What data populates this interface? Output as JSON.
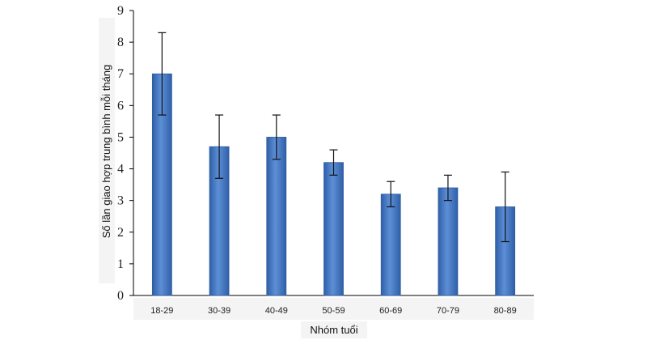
{
  "chart_data": {
    "type": "bar",
    "categories": [
      "18-29",
      "30-39",
      "40-49",
      "50-59",
      "60-69",
      "70-79",
      "80-89"
    ],
    "series": [
      {
        "values": [
          7.0,
          4.7,
          5.0,
          4.2,
          3.2,
          3.4,
          2.8
        ],
        "error_low": [
          5.7,
          3.7,
          4.3,
          3.8,
          2.8,
          3.0,
          1.7
        ],
        "error_high": [
          8.3,
          5.7,
          5.7,
          4.6,
          3.6,
          3.8,
          3.9
        ]
      }
    ],
    "xlabel": "Nhóm tuổi",
    "ylabel": "Số lần giao hợp trung bình mỗi tháng",
    "ylim": [
      0,
      9
    ],
    "yticks": [
      "0",
      "1",
      "2",
      "3",
      "4",
      "5",
      "6",
      "7",
      "8",
      "9"
    ],
    "grid": false,
    "legend": "none",
    "colors": {
      "bar": "#4a7cc4",
      "bar_edge": "#2f5c9e",
      "error": "#111111"
    }
  }
}
